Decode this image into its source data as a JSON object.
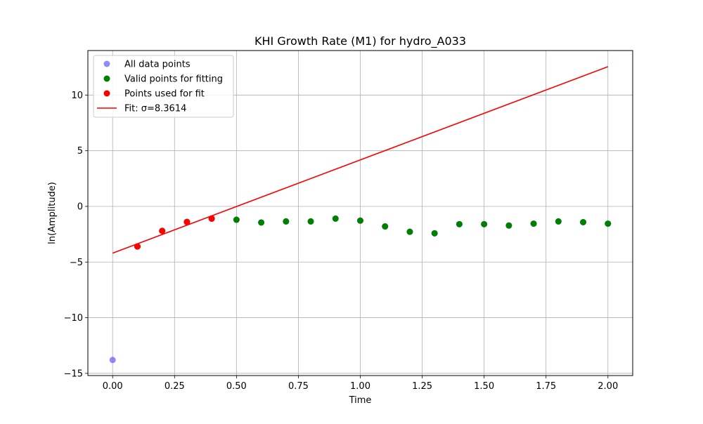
{
  "chart_data": {
    "type": "scatter",
    "title": "KHI Growth Rate (M1) for hydro_A033",
    "xlabel": "Time",
    "ylabel": "ln(Amplitude)",
    "xlim": [
      -0.1,
      2.1
    ],
    "ylim": [
      -15.2,
      14.0
    ],
    "grid": true,
    "legend_position": "top-left",
    "x_ticks": [
      0.0,
      0.25,
      0.5,
      0.75,
      1.0,
      1.25,
      1.5,
      1.75,
      2.0
    ],
    "x_tick_labels": [
      "0.00",
      "0.25",
      "0.50",
      "0.75",
      "1.00",
      "1.25",
      "1.50",
      "1.75",
      "2.00"
    ],
    "y_ticks": [
      -15,
      -10,
      -5,
      0,
      5,
      10
    ],
    "y_tick_labels": [
      "−15",
      "−10",
      "−5",
      "0",
      "5",
      "10"
    ],
    "series": [
      {
        "name": "All data points",
        "kind": "scatter",
        "color": "#6666ff",
        "points": [
          [
            0.0,
            -13.8
          ],
          [
            0.1,
            -3.6
          ],
          [
            0.2,
            -2.2
          ],
          [
            0.3,
            -1.4
          ],
          [
            0.4,
            -1.1
          ],
          [
            0.5,
            -1.2
          ],
          [
            0.6,
            -1.45
          ],
          [
            0.7,
            -1.35
          ],
          [
            0.8,
            -1.35
          ],
          [
            0.9,
            -1.1
          ],
          [
            1.0,
            -1.28
          ],
          [
            1.1,
            -1.8
          ],
          [
            1.2,
            -2.28
          ],
          [
            1.3,
            -2.42
          ],
          [
            1.4,
            -1.6
          ],
          [
            1.5,
            -1.6
          ],
          [
            1.6,
            -1.72
          ],
          [
            1.7,
            -1.55
          ],
          [
            1.8,
            -1.35
          ],
          [
            1.9,
            -1.42
          ],
          [
            2.0,
            -1.55
          ]
        ]
      },
      {
        "name": "Valid points for fitting",
        "kind": "scatter",
        "color": "#008000",
        "points": [
          [
            0.1,
            -3.6
          ],
          [
            0.2,
            -2.2
          ],
          [
            0.3,
            -1.4
          ],
          [
            0.4,
            -1.1
          ],
          [
            0.5,
            -1.2
          ],
          [
            0.6,
            -1.45
          ],
          [
            0.7,
            -1.35
          ],
          [
            0.8,
            -1.35
          ],
          [
            0.9,
            -1.1
          ],
          [
            1.0,
            -1.28
          ],
          [
            1.1,
            -1.8
          ],
          [
            1.2,
            -2.28
          ],
          [
            1.3,
            -2.42
          ],
          [
            1.4,
            -1.6
          ],
          [
            1.5,
            -1.6
          ],
          [
            1.6,
            -1.72
          ],
          [
            1.7,
            -1.55
          ],
          [
            1.8,
            -1.35
          ],
          [
            1.9,
            -1.42
          ],
          [
            2.0,
            -1.55
          ]
        ]
      },
      {
        "name": "Points used for fit",
        "kind": "scatter",
        "color": "#ff0000",
        "points": [
          [
            0.1,
            -3.6
          ],
          [
            0.2,
            -2.2
          ],
          [
            0.3,
            -1.4
          ],
          [
            0.4,
            -1.1
          ]
        ]
      },
      {
        "name": "Fit: σ=8.3614",
        "kind": "line",
        "color": "#ff0000",
        "points": [
          [
            0.0,
            -4.2
          ],
          [
            2.0,
            12.55
          ]
        ]
      }
    ]
  }
}
